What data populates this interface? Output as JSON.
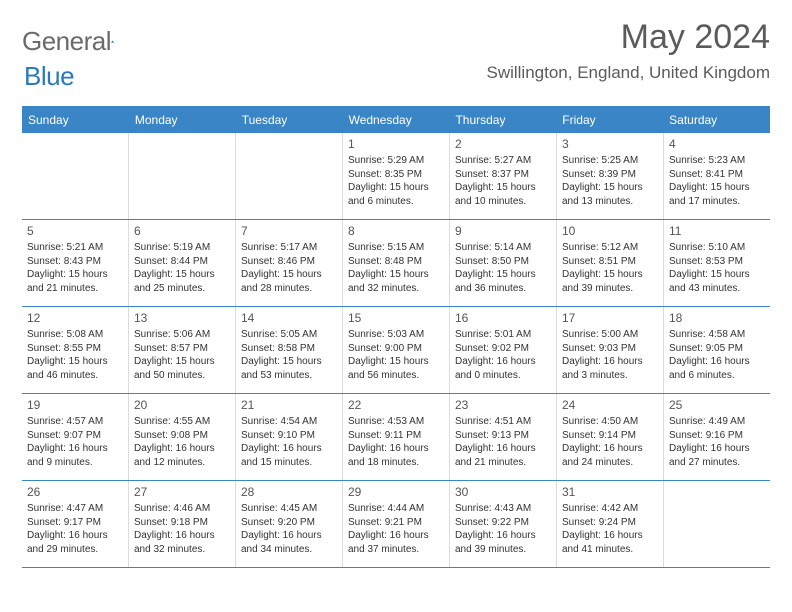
{
  "logo": {
    "textA": "General",
    "textB": "Blue"
  },
  "title": "May 2024",
  "location": "Swillington, England, United Kingdom",
  "colors": {
    "header_bg": "#3a85c6",
    "header_text": "#ffffff",
    "logo_gray": "#6a6a6a",
    "logo_blue": "#2b7abf",
    "text": "#333333",
    "divider": "#3a85c6"
  },
  "day_headers": [
    "Sunday",
    "Monday",
    "Tuesday",
    "Wednesday",
    "Thursday",
    "Friday",
    "Saturday"
  ],
  "weeks": [
    [
      {},
      {},
      {},
      {
        "d": "1",
        "sr": "5:29 AM",
        "ss": "8:35 PM",
        "dl": "15 hours and 6 minutes."
      },
      {
        "d": "2",
        "sr": "5:27 AM",
        "ss": "8:37 PM",
        "dl": "15 hours and 10 minutes."
      },
      {
        "d": "3",
        "sr": "5:25 AM",
        "ss": "8:39 PM",
        "dl": "15 hours and 13 minutes."
      },
      {
        "d": "4",
        "sr": "5:23 AM",
        "ss": "8:41 PM",
        "dl": "15 hours and 17 minutes."
      }
    ],
    [
      {
        "d": "5",
        "sr": "5:21 AM",
        "ss": "8:43 PM",
        "dl": "15 hours and 21 minutes."
      },
      {
        "d": "6",
        "sr": "5:19 AM",
        "ss": "8:44 PM",
        "dl": "15 hours and 25 minutes."
      },
      {
        "d": "7",
        "sr": "5:17 AM",
        "ss": "8:46 PM",
        "dl": "15 hours and 28 minutes."
      },
      {
        "d": "8",
        "sr": "5:15 AM",
        "ss": "8:48 PM",
        "dl": "15 hours and 32 minutes."
      },
      {
        "d": "9",
        "sr": "5:14 AM",
        "ss": "8:50 PM",
        "dl": "15 hours and 36 minutes."
      },
      {
        "d": "10",
        "sr": "5:12 AM",
        "ss": "8:51 PM",
        "dl": "15 hours and 39 minutes."
      },
      {
        "d": "11",
        "sr": "5:10 AM",
        "ss": "8:53 PM",
        "dl": "15 hours and 43 minutes."
      }
    ],
    [
      {
        "d": "12",
        "sr": "5:08 AM",
        "ss": "8:55 PM",
        "dl": "15 hours and 46 minutes."
      },
      {
        "d": "13",
        "sr": "5:06 AM",
        "ss": "8:57 PM",
        "dl": "15 hours and 50 minutes."
      },
      {
        "d": "14",
        "sr": "5:05 AM",
        "ss": "8:58 PM",
        "dl": "15 hours and 53 minutes."
      },
      {
        "d": "15",
        "sr": "5:03 AM",
        "ss": "9:00 PM",
        "dl": "15 hours and 56 minutes."
      },
      {
        "d": "16",
        "sr": "5:01 AM",
        "ss": "9:02 PM",
        "dl": "16 hours and 0 minutes."
      },
      {
        "d": "17",
        "sr": "5:00 AM",
        "ss": "9:03 PM",
        "dl": "16 hours and 3 minutes."
      },
      {
        "d": "18",
        "sr": "4:58 AM",
        "ss": "9:05 PM",
        "dl": "16 hours and 6 minutes."
      }
    ],
    [
      {
        "d": "19",
        "sr": "4:57 AM",
        "ss": "9:07 PM",
        "dl": "16 hours and 9 minutes."
      },
      {
        "d": "20",
        "sr": "4:55 AM",
        "ss": "9:08 PM",
        "dl": "16 hours and 12 minutes."
      },
      {
        "d": "21",
        "sr": "4:54 AM",
        "ss": "9:10 PM",
        "dl": "16 hours and 15 minutes."
      },
      {
        "d": "22",
        "sr": "4:53 AM",
        "ss": "9:11 PM",
        "dl": "16 hours and 18 minutes."
      },
      {
        "d": "23",
        "sr": "4:51 AM",
        "ss": "9:13 PM",
        "dl": "16 hours and 21 minutes."
      },
      {
        "d": "24",
        "sr": "4:50 AM",
        "ss": "9:14 PM",
        "dl": "16 hours and 24 minutes."
      },
      {
        "d": "25",
        "sr": "4:49 AM",
        "ss": "9:16 PM",
        "dl": "16 hours and 27 minutes."
      }
    ],
    [
      {
        "d": "26",
        "sr": "4:47 AM",
        "ss": "9:17 PM",
        "dl": "16 hours and 29 minutes."
      },
      {
        "d": "27",
        "sr": "4:46 AM",
        "ss": "9:18 PM",
        "dl": "16 hours and 32 minutes."
      },
      {
        "d": "28",
        "sr": "4:45 AM",
        "ss": "9:20 PM",
        "dl": "16 hours and 34 minutes."
      },
      {
        "d": "29",
        "sr": "4:44 AM",
        "ss": "9:21 PM",
        "dl": "16 hours and 37 minutes."
      },
      {
        "d": "30",
        "sr": "4:43 AM",
        "ss": "9:22 PM",
        "dl": "16 hours and 39 minutes."
      },
      {
        "d": "31",
        "sr": "4:42 AM",
        "ss": "9:24 PM",
        "dl": "16 hours and 41 minutes."
      },
      {}
    ]
  ],
  "labels": {
    "sunrise": "Sunrise:",
    "sunset": "Sunset:",
    "daylight": "Daylight:"
  }
}
